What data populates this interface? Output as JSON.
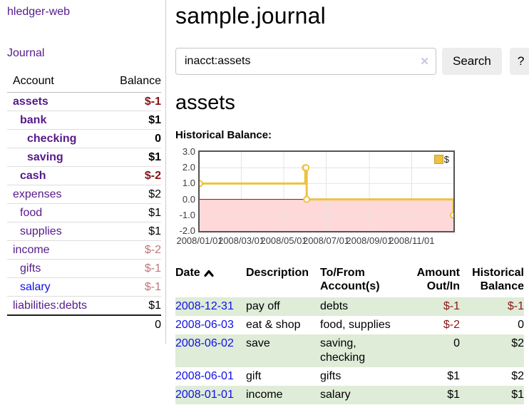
{
  "app": {
    "brand": "hledger-web",
    "nav_journal": "Journal"
  },
  "sidebar": {
    "headers": {
      "account": "Account",
      "balance": "Balance"
    },
    "accounts": [
      {
        "name": "assets",
        "level": 1,
        "bold": true,
        "balance": "$-1",
        "balance_style": "neg-strong"
      },
      {
        "name": "bank",
        "level": 2,
        "bold": true,
        "balance": "$1",
        "balance_style": ""
      },
      {
        "name": "checking",
        "level": 3,
        "bold": true,
        "balance": "0",
        "balance_style": ""
      },
      {
        "name": "saving",
        "level": 3,
        "bold": true,
        "balance": "$1",
        "balance_style": ""
      },
      {
        "name": "cash",
        "level": 2,
        "bold": true,
        "balance": "$-2",
        "balance_style": "neg-strong"
      },
      {
        "name": "expenses",
        "level": 1,
        "bold": false,
        "balance": "$2",
        "balance_style": ""
      },
      {
        "name": "food",
        "level": 2,
        "bold": false,
        "balance": "$1",
        "balance_style": ""
      },
      {
        "name": "supplies",
        "level": 2,
        "bold": false,
        "balance": "$1",
        "balance_style": ""
      },
      {
        "name": "income",
        "level": 1,
        "bold": false,
        "balance": "$-2",
        "balance_style": "neg-faded"
      },
      {
        "name": "gifts",
        "level": 2,
        "bold": false,
        "balance": "$-1",
        "balance_style": "neg-faded"
      },
      {
        "name": "salary",
        "level": 2,
        "bold": false,
        "balance": "$-1",
        "balance_style": "neg-faded",
        "link_color": "blue"
      },
      {
        "name": "liabilities:debts",
        "level": 1,
        "bold": false,
        "balance": "$1",
        "balance_style": ""
      }
    ],
    "total": "0"
  },
  "header": {
    "title": "sample.journal"
  },
  "search": {
    "query": "inacct:assets",
    "clear_icon": "✕",
    "button_label": "Search",
    "help_label": "?"
  },
  "account_page": {
    "heading": "assets",
    "chart_label": "Historical Balance:"
  },
  "chart_data": {
    "type": "line",
    "step": true,
    "title": "Historical Balance",
    "series": [
      {
        "name": "$",
        "color": "#edc240",
        "points": [
          [
            "2008-01-01",
            1
          ],
          [
            "2008-06-01",
            2
          ],
          [
            "2008-06-02",
            2
          ],
          [
            "2008-06-03",
            0
          ],
          [
            "2008-12-31",
            -1
          ]
        ]
      }
    ],
    "xlim": [
      "2008-01-01",
      "2008-12-31"
    ],
    "ylim": [
      -2,
      3
    ],
    "x_ticks": [
      "2008/01/01",
      "2008/03/01",
      "2008/05/01",
      "2008/07/01",
      "2008/09/01",
      "2008/11/01"
    ],
    "y_ticks": [
      "3.0",
      "2.0",
      "1.0",
      "0.0",
      "-1.0",
      "-2.0"
    ],
    "grid": true,
    "legend_position": "top-right",
    "negative_fill": "#ffd9d9",
    "zero_line_color": "#aa0000",
    "grid_color": "#e4e4e4"
  },
  "register": {
    "headers": {
      "date": "Date",
      "description": "Description",
      "accounts": "To/From Account(s)",
      "amount": "Amount Out/In",
      "balance": "Historical Balance"
    },
    "rows": [
      {
        "date": "2008-12-31",
        "description": "pay off",
        "accounts": "debts",
        "amount": "$-1",
        "amount_neg": true,
        "balance": "$-1",
        "balance_neg": true,
        "shade": true
      },
      {
        "date": "2008-06-03",
        "description": "eat & shop",
        "accounts": "food, supplies",
        "amount": "$-2",
        "amount_neg": true,
        "balance": "0",
        "balance_neg": false,
        "shade": false
      },
      {
        "date": "2008-06-02",
        "description": "save",
        "accounts": "saving, checking",
        "amount": "0",
        "amount_neg": false,
        "balance": "$2",
        "balance_neg": false,
        "shade": true
      },
      {
        "date": "2008-06-01",
        "description": "gift",
        "accounts": "gifts",
        "amount": "$1",
        "amount_neg": false,
        "balance": "$2",
        "balance_neg": false,
        "shade": false
      },
      {
        "date": "2008-01-01",
        "description": "income",
        "accounts": "salary",
        "amount": "$1",
        "amount_neg": false,
        "balance": "$1",
        "balance_neg": false,
        "shade": true
      }
    ]
  },
  "colors": {
    "link_purple": "#551a8b",
    "link_blue": "#1010e8",
    "negative_strong": "#821414",
    "negative_faded": "#c1757b",
    "negative_register": "#8c1717",
    "row_green": "#deecd8",
    "chart_line": "#edc240",
    "chart_negative_fill": "#ffd9d9",
    "chart_zero_line": "#aa0000"
  }
}
